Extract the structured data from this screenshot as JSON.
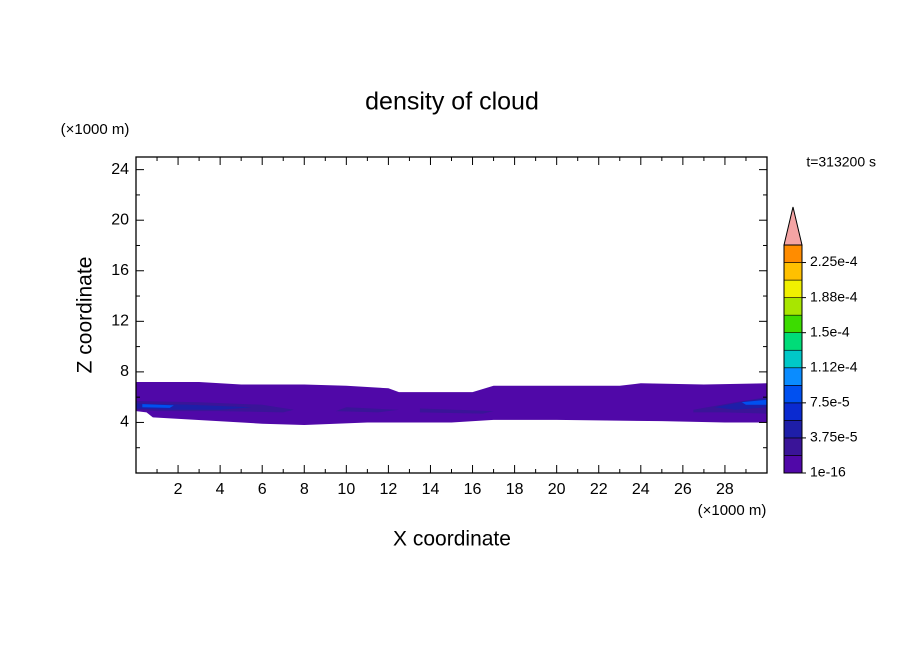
{
  "chart_data": {
    "type": "contour",
    "title": "density of cloud",
    "x_label": "X coordinate",
    "y_label": "Z coordinate",
    "x_unit": "(×1000 m)",
    "y_unit": "(×1000 m)",
    "annotation": "t=313200 s",
    "xlim": [
      0,
      30
    ],
    "ylim": [
      0,
      25
    ],
    "xticks": [
      2,
      4,
      6,
      8,
      10,
      12,
      14,
      16,
      18,
      20,
      22,
      24,
      26,
      28
    ],
    "xticks_minor": [
      1,
      3,
      5,
      7,
      9,
      11,
      13,
      15,
      17,
      19,
      21,
      23,
      25,
      27,
      29
    ],
    "yticks": [
      4,
      8,
      12,
      16,
      20,
      24
    ],
    "yticks_minor": [
      2,
      6,
      10,
      14,
      18,
      22
    ],
    "colorbar": {
      "lim": [
        1e-16,
        0.00024375
      ],
      "ticks": [
        {
          "value": 1e-16,
          "label": "1e-16"
        },
        {
          "value": 3.75e-05,
          "label": "3.75e-5"
        },
        {
          "value": 7.5e-05,
          "label": "7.5e-5"
        },
        {
          "value": 0.0001125,
          "label": "1.12e-4"
        },
        {
          "value": 0.00015,
          "label": "1.5e-4"
        },
        {
          "value": 0.0001875,
          "label": "1.88e-4"
        },
        {
          "value": 0.000225,
          "label": "2.25e-4"
        }
      ],
      "colors": [
        "#5008a8",
        "#3a1498",
        "#1e1ea8",
        "#0a2ad0",
        "#0050f0",
        "#0a8cff",
        "#00c8c8",
        "#00dc78",
        "#3cdc00",
        "#a8e600",
        "#f0f000",
        "#ffc000",
        "#ff8c00"
      ],
      "over_color": "#f4a4a4"
    },
    "contours": [
      {
        "level": 1e-16,
        "x": [
          0,
          3,
          5,
          8,
          10,
          12,
          12.5,
          16,
          17,
          23,
          24,
          27,
          30,
          30,
          28,
          25,
          20,
          17,
          15,
          11,
          8,
          6,
          0.8,
          0.5,
          0
        ],
        "z": [
          7.2,
          7.2,
          7.0,
          7.0,
          6.9,
          6.7,
          6.4,
          6.4,
          6.9,
          6.9,
          7.1,
          7.0,
          7.1,
          4.0,
          4.0,
          4.1,
          4.2,
          4.2,
          4.0,
          4.0,
          3.8,
          3.9,
          4.4,
          4.8,
          4.9
        ]
      },
      {
        "level": 1.875e-05,
        "x": [
          0,
          3,
          6,
          7.5,
          7,
          4,
          1,
          0
        ],
        "z": [
          5.7,
          5.6,
          5.4,
          5.0,
          4.8,
          4.9,
          4.9,
          5.0
        ]
      },
      {
        "level": 1.875e-05,
        "x": [
          10,
          12.5,
          11.5,
          9.5
        ],
        "z": [
          5.2,
          5.0,
          4.8,
          4.9
        ]
      },
      {
        "level": 1.875e-05,
        "x": [
          13.5,
          17,
          16.5,
          13.5
        ],
        "z": [
          5.1,
          4.9,
          4.7,
          4.8
        ]
      },
      {
        "level": 1.875e-05,
        "x": [
          26.5,
          28.5,
          30,
          30,
          28,
          26.5
        ],
        "z": [
          5.0,
          5.6,
          6.0,
          4.7,
          4.8,
          4.8
        ]
      },
      {
        "level": 3.75e-05,
        "x": [
          0,
          2.5,
          5.5,
          4,
          1.5,
          0
        ],
        "z": [
          5.5,
          5.4,
          5.2,
          5.0,
          5.0,
          5.1
        ]
      },
      {
        "level": 7.5e-05,
        "x": [
          0.3,
          1.8,
          1.6,
          0.3
        ],
        "z": [
          5.45,
          5.35,
          5.15,
          5.2
        ]
      },
      {
        "level": 3.75e-05,
        "x": [
          27.5,
          29,
          30,
          30,
          28.5
        ],
        "z": [
          5.2,
          5.7,
          5.9,
          5.2,
          5.0
        ]
      },
      {
        "level": 7.5e-05,
        "x": [
          28.8,
          30,
          30,
          29
        ],
        "z": [
          5.6,
          5.8,
          5.4,
          5.4
        ]
      }
    ]
  }
}
